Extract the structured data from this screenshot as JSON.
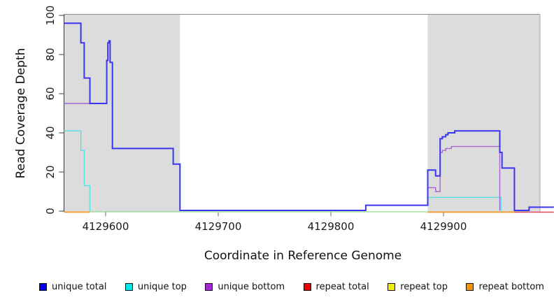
{
  "figure": {
    "x_axis_title": "Coordinate in Reference Genome",
    "y_axis_title": "Read Coverage Depth"
  },
  "chart_data": {
    "type": "line",
    "subtype": "step",
    "title": "",
    "xlabel": "Coordinate in Reference Genome",
    "ylabel": "Read Coverage Depth",
    "xlim": [
      4129563,
      4129998
    ],
    "ylim": [
      0,
      100
    ],
    "x_ticks": [
      4129600,
      4129700,
      4129800,
      4129900
    ],
    "y_ticks": [
      0,
      20,
      40,
      60,
      80,
      100
    ],
    "grid": false,
    "legend_position": "bottom-horizontal",
    "shaded_regions": [
      {
        "name": "left-gray-region",
        "x1": 4129563,
        "x2": 4129666,
        "color": "#DCDCDC"
      },
      {
        "name": "right-gray-region",
        "x1": 4129886,
        "x2": 4129986,
        "color": "#DCDCDC"
      }
    ],
    "series": [
      {
        "name": "repeat top",
        "render_color": "#8FD98F",
        "width": 1.3,
        "zero_dy": 1,
        "segments": [
          {
            "points": [
              [
                4129586,
                0
              ]
            ],
            "end": 4129976
          }
        ]
      },
      {
        "name": "repeat bottom",
        "render_color": "#FF9420",
        "width": 1.8,
        "zero_dy": 1.5,
        "segments": [
          {
            "points": [
              [
                4129563,
                0
              ]
            ],
            "end": 4129586
          },
          {
            "points": [
              [
                4129886,
                0
              ]
            ],
            "end": 4129963
          }
        ]
      },
      {
        "name": "unique top",
        "render_color": "#55E0E0",
        "width": 1.4,
        "zero_dy": 0,
        "segments": [
          {
            "points": [
              [
                4129563,
                41
              ],
              [
                4129578,
                31
              ],
              [
                4129581,
                13
              ],
              [
                4129586,
                0
              ]
            ],
            "end": 4129586
          },
          {
            "points": [
              [
                4129886,
                7
              ],
              [
                4129951,
                0
              ]
            ],
            "end": 4129951
          }
        ]
      },
      {
        "name": "unique bottom",
        "render_color": "#A564D8",
        "width": 1.4,
        "zero_dy": -1,
        "segments": [
          {
            "points": [
              [
                4129563,
                55
              ]
            ],
            "end": 4129601
          },
          {
            "points": [
              [
                4129666,
                0
              ]
            ],
            "end": 4129831
          },
          {
            "points": [
              [
                4129886,
                12
              ],
              [
                4129893,
                10
              ],
              [
                4129897,
                30
              ],
              [
                4129899,
                31
              ],
              [
                4129902,
                32
              ],
              [
                4129907,
                33
              ],
              [
                4129950,
                0
              ]
            ],
            "end": 4129950
          }
        ]
      },
      {
        "name": "unique total",
        "render_color": "#3A35EE",
        "width": 2,
        "zero_dy": -1,
        "segments": [
          {
            "points": [
              [
                4129563,
                96
              ],
              [
                4129578,
                86
              ],
              [
                4129581,
                68
              ],
              [
                4129586,
                55
              ],
              [
                4129601,
                77
              ],
              [
                4129602,
                86
              ],
              [
                4129603,
                87
              ],
              [
                4129604,
                76
              ],
              [
                4129606,
                32
              ],
              [
                4129660,
                24
              ],
              [
                4129666,
                0
              ],
              [
                4129831,
                3
              ],
              [
                4129886,
                21
              ],
              [
                4129893,
                18
              ],
              [
                4129897,
                37
              ],
              [
                4129899,
                38
              ],
              [
                4129902,
                39
              ],
              [
                4129904,
                40
              ],
              [
                4129910,
                41
              ],
              [
                4129950,
                30
              ],
              [
                4129952,
                22
              ],
              [
                4129963,
                0
              ],
              [
                4129976,
                2
              ]
            ],
            "end": 4129998
          }
        ]
      },
      {
        "name": "repeat total",
        "render_color": "#E04858",
        "width": 1.4,
        "zero_dy": 1.5,
        "segments": [
          {
            "points": [
              [
                4129963,
                0
              ]
            ],
            "end": 4129998
          }
        ]
      }
    ],
    "legend": [
      {
        "label": "unique total",
        "color": "#0000EE"
      },
      {
        "label": "unique top",
        "color": "#00E5E5"
      },
      {
        "label": "unique bottom",
        "color": "#A428D4"
      },
      {
        "label": "repeat total",
        "color": "#EE0000"
      },
      {
        "label": "repeat top",
        "color": "#F0F000"
      },
      {
        "label": "repeat bottom",
        "color": "#F59300"
      }
    ]
  }
}
